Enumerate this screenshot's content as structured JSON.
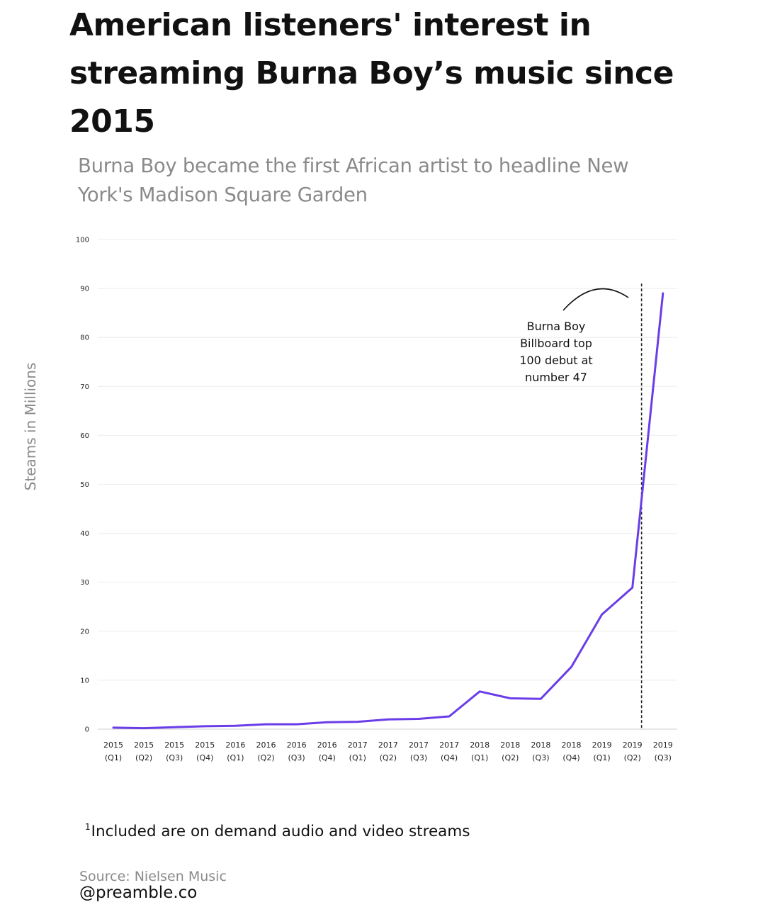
{
  "title": "American listeners' interest in streaming Burna Boy’s music since 2015",
  "subtitle": "Burna Boy became the first African artist to headline New York's Madison Square Garden",
  "chart_data": {
    "type": "line",
    "ylabel": "Steams in Millions",
    "xlabel": "",
    "ylim": [
      0,
      100
    ],
    "yticks": [
      0,
      10,
      20,
      30,
      40,
      50,
      60,
      70,
      80,
      90,
      100
    ],
    "grid": true,
    "categories": [
      [
        "2015",
        "(Q1)"
      ],
      [
        "2015",
        "(Q2)"
      ],
      [
        "2015",
        "(Q3)"
      ],
      [
        "2015",
        "(Q4)"
      ],
      [
        "2016",
        "(Q1)"
      ],
      [
        "2016",
        "(Q2)"
      ],
      [
        "2016",
        "(Q3)"
      ],
      [
        "2016",
        "(Q4)"
      ],
      [
        "2017",
        "(Q1)"
      ],
      [
        "2017",
        "(Q2)"
      ],
      [
        "2017",
        "(Q3)"
      ],
      [
        "2017",
        "(Q4)"
      ],
      [
        "2018",
        "(Q1)"
      ],
      [
        "2018",
        "(Q2)"
      ],
      [
        "2018",
        "(Q3)"
      ],
      [
        "2018",
        "(Q4)"
      ],
      [
        "2019",
        "(Q1)"
      ],
      [
        "2019",
        "(Q2)"
      ],
      [
        "2019",
        "(Q3)"
      ]
    ],
    "series": [
      {
        "values": [
          0.3,
          0.2,
          0.4,
          0.6,
          0.7,
          1.0,
          1.0,
          1.4,
          1.5,
          2.0,
          2.1,
          2.6,
          7.7,
          6.3,
          6.2,
          12.7,
          23.4,
          28.9,
          89.0
        ],
        "color": "#6a3de8"
      }
    ],
    "annotation": {
      "text_lines": [
        "Burna Boy",
        "Billboard top",
        "100 debut at",
        "number 47"
      ],
      "marker_category_index": 17.3,
      "marker_style": "dashed"
    }
  },
  "footnote": {
    "mark": "1",
    "text": "Included are on demand audio and video streams"
  },
  "source": "Source: Nielsen Music",
  "handle": "@preamble.co"
}
